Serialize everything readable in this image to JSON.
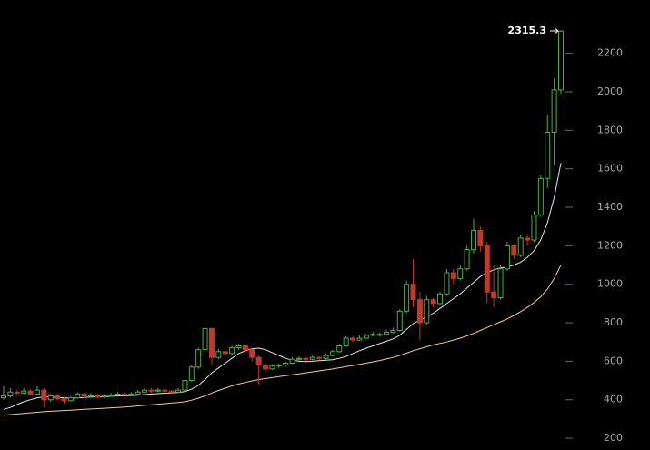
{
  "chart_data": {
    "type": "candlestick",
    "up_color": "#4caf3c",
    "down_color": "#c0392b",
    "ylim": [
      139,
      2477
    ],
    "yticks": [
      200,
      400,
      600,
      800,
      1000,
      1200,
      1400,
      1600,
      1800,
      2000,
      2200
    ],
    "open": [
      410,
      420,
      440,
      435,
      445,
      430,
      450,
      400,
      420,
      405,
      395,
      410,
      430,
      420,
      425,
      415,
      420,
      425,
      430,
      425,
      430,
      440,
      450,
      445,
      450,
      445,
      440,
      450,
      500,
      570,
      660,
      770,
      620,
      650,
      640,
      670,
      680,
      660,
      620,
      580,
      560,
      575,
      580,
      590,
      610,
      615,
      610,
      620,
      615,
      630,
      650,
      680,
      720,
      710,
      720,
      735,
      740,
      740,
      750,
      760,
      860,
      1000,
      920,
      800,
      920,
      900,
      950,
      1060,
      1030,
      1080,
      1180,
      1280,
      1200,
      960,
      930,
      1080,
      1200,
      1150,
      1240,
      1230,
      1360,
      1550,
      1790,
      2010
    ],
    "high": [
      470,
      460,
      450,
      460,
      455,
      470,
      460,
      430,
      430,
      415,
      420,
      440,
      435,
      435,
      430,
      430,
      435,
      440,
      440,
      440,
      450,
      460,
      460,
      460,
      455,
      450,
      460,
      510,
      580,
      670,
      780,
      775,
      665,
      660,
      680,
      690,
      690,
      665,
      630,
      590,
      585,
      590,
      600,
      620,
      625,
      620,
      630,
      625,
      640,
      660,
      690,
      730,
      730,
      735,
      745,
      755,
      750,
      765,
      775,
      870,
      1020,
      1130,
      960,
      940,
      930,
      960,
      1080,
      1080,
      1100,
      1200,
      1340,
      1300,
      1220,
      1100,
      1100,
      1220,
      1210,
      1260,
      1260,
      1380,
      1570,
      1880,
      2070,
      2320
    ],
    "low": [
      400,
      410,
      425,
      430,
      420,
      425,
      360,
      390,
      395,
      380,
      390,
      405,
      410,
      410,
      405,
      410,
      415,
      420,
      415,
      420,
      425,
      435,
      435,
      440,
      435,
      430,
      435,
      445,
      495,
      560,
      650,
      580,
      610,
      630,
      635,
      660,
      650,
      600,
      480,
      550,
      555,
      565,
      570,
      585,
      600,
      600,
      605,
      605,
      610,
      625,
      645,
      675,
      700,
      705,
      715,
      730,
      730,
      735,
      745,
      755,
      850,
      880,
      710,
      790,
      880,
      890,
      940,
      1000,
      1020,
      1070,
      1160,
      1170,
      900,
      880,
      920,
      1070,
      1130,
      1140,
      1200,
      1220,
      1350,
      1500,
      1620,
      1990
    ],
    "close": [
      420,
      440,
      435,
      445,
      430,
      450,
      400,
      420,
      405,
      395,
      410,
      430,
      420,
      425,
      415,
      420,
      425,
      430,
      425,
      430,
      440,
      450,
      445,
      450,
      445,
      440,
      450,
      500,
      570,
      660,
      770,
      620,
      650,
      640,
      670,
      680,
      660,
      620,
      580,
      560,
      575,
      580,
      590,
      610,
      615,
      610,
      620,
      615,
      630,
      650,
      680,
      720,
      710,
      720,
      735,
      740,
      740,
      750,
      760,
      860,
      1000,
      920,
      800,
      920,
      900,
      950,
      1060,
      1030,
      1080,
      1180,
      1280,
      1200,
      960,
      930,
      1080,
      1200,
      1150,
      1240,
      1230,
      1360,
      1550,
      1790,
      2010,
      2315.3
    ],
    "overlays": [
      {
        "color": "#e6e6e6",
        "values": [
          350,
          360,
          375,
          390,
          400,
          410,
          415,
          415,
          412,
          410,
          408,
          410,
          412,
          414,
          415,
          416,
          418,
          420,
          421,
          422,
          424,
          427,
          430,
          432,
          434,
          436,
          438,
          442,
          455,
          475,
          505,
          540,
          565,
          590,
          615,
          640,
          655,
          665,
          668,
          660,
          645,
          630,
          615,
          605,
          600,
          598,
          600,
          603,
          605,
          608,
          615,
          625,
          640,
          655,
          668,
          680,
          692,
          704,
          716,
          735,
          765,
          795,
          815,
          830,
          850,
          875,
          900,
          925,
          950,
          980,
          1010,
          1040,
          1060,
          1075,
          1085,
          1090,
          1100,
          1115,
          1140,
          1175,
          1230,
          1320,
          1450,
          1630
        ]
      },
      {
        "color": "#f2c9a0",
        "values": [
          320,
          323,
          326,
          329,
          332,
          335,
          338,
          340,
          342,
          344,
          346,
          348,
          350,
          352,
          354,
          356,
          358,
          360,
          362,
          365,
          368,
          371,
          374,
          377,
          380,
          383,
          386,
          390,
          398,
          408,
          420,
          435,
          448,
          460,
          472,
          482,
          490,
          498,
          505,
          510,
          515,
          520,
          525,
          530,
          535,
          540,
          545,
          550,
          555,
          560,
          566,
          572,
          578,
          584,
          590,
          597,
          604,
          612,
          620,
          630,
          642,
          655,
          665,
          675,
          685,
          693,
          700,
          710,
          720,
          732,
          745,
          760,
          775,
          790,
          805,
          820,
          838,
          858,
          880,
          905,
          935,
          975,
          1030,
          1100
        ]
      }
    ]
  }
}
